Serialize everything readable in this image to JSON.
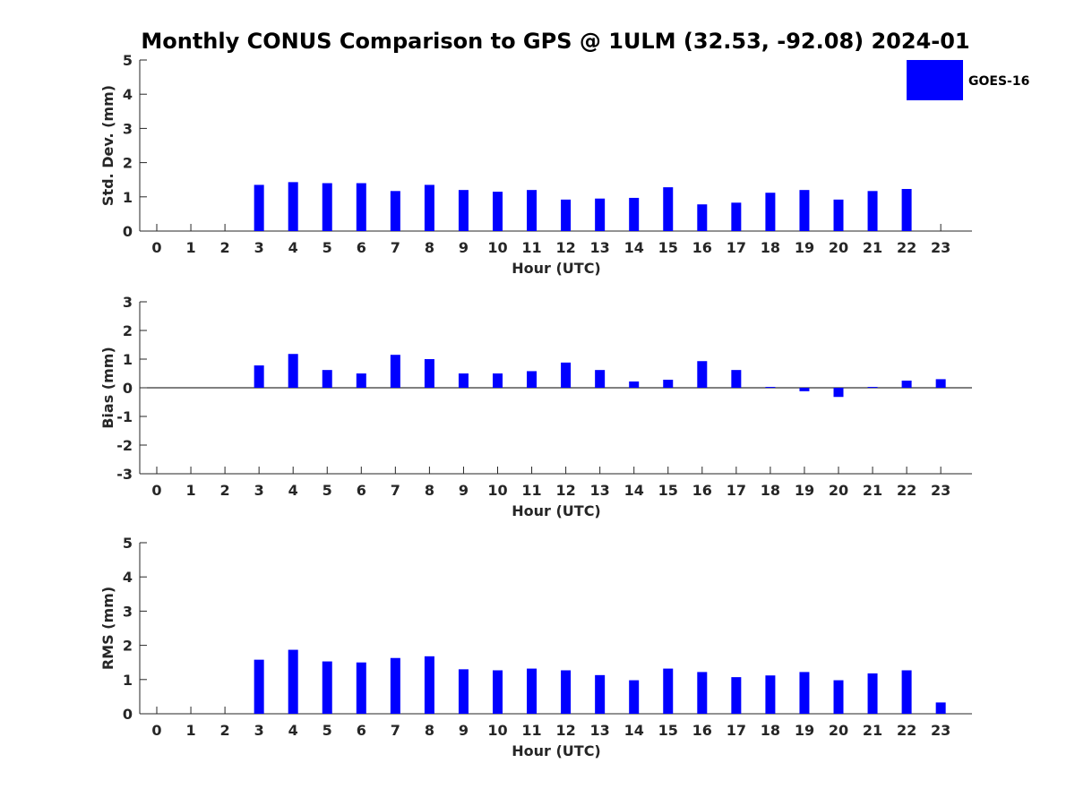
{
  "title": "Monthly CONUS Comparison to GPS @ 1ULM (32.53, -92.08) 2024-01",
  "legend": {
    "label": "GOES-16",
    "color": "#0000FF",
    "placement": "top-right"
  },
  "chart_data": [
    {
      "type": "bar",
      "ylabel": "Std. Dev. (mm)",
      "xlabel": "Hour (UTC)",
      "ylim": [
        0,
        5
      ],
      "yticks": [
        "0",
        "1",
        "2",
        "3",
        "4",
        "5"
      ],
      "categories": [
        "0",
        "1",
        "2",
        "3",
        "4",
        "5",
        "6",
        "7",
        "8",
        "9",
        "10",
        "11",
        "12",
        "13",
        "14",
        "15",
        "16",
        "17",
        "18",
        "19",
        "20",
        "21",
        "22",
        "23"
      ],
      "series": [
        {
          "name": "GOES-16",
          "values": [
            null,
            null,
            null,
            1.35,
            1.43,
            1.4,
            1.4,
            1.17,
            1.35,
            1.2,
            1.15,
            1.2,
            0.92,
            0.95,
            0.97,
            1.28,
            0.78,
            0.83,
            1.12,
            1.2,
            0.92,
            1.17,
            1.23,
            null
          ]
        }
      ]
    },
    {
      "type": "bar",
      "ylabel": "Bias (mm)",
      "xlabel": "Hour (UTC)",
      "ylim": [
        -3,
        3
      ],
      "yticks": [
        "-3",
        "-2",
        "-1",
        "0",
        "1",
        "2",
        "3"
      ],
      "categories": [
        "0",
        "1",
        "2",
        "3",
        "4",
        "5",
        "6",
        "7",
        "8",
        "9",
        "10",
        "11",
        "12",
        "13",
        "14",
        "15",
        "16",
        "17",
        "18",
        "19",
        "20",
        "21",
        "22",
        "23"
      ],
      "series": [
        {
          "name": "GOES-16",
          "values": [
            null,
            null,
            null,
            0.78,
            1.18,
            0.62,
            0.5,
            1.15,
            1.0,
            0.5,
            0.5,
            0.58,
            0.88,
            0.62,
            0.22,
            0.28,
            0.93,
            0.62,
            0.03,
            -0.12,
            -0.32,
            0.03,
            0.25,
            0.3
          ]
        }
      ]
    },
    {
      "type": "bar",
      "ylabel": "RMS (mm)",
      "xlabel": "Hour (UTC)",
      "ylim": [
        0,
        5
      ],
      "yticks": [
        "0",
        "1",
        "2",
        "3",
        "4",
        "5"
      ],
      "categories": [
        "0",
        "1",
        "2",
        "3",
        "4",
        "5",
        "6",
        "7",
        "8",
        "9",
        "10",
        "11",
        "12",
        "13",
        "14",
        "15",
        "16",
        "17",
        "18",
        "19",
        "20",
        "21",
        "22",
        "23"
      ],
      "series": [
        {
          "name": "GOES-16",
          "values": [
            null,
            null,
            null,
            1.58,
            1.87,
            1.53,
            1.5,
            1.63,
            1.68,
            1.3,
            1.27,
            1.32,
            1.27,
            1.13,
            0.98,
            1.32,
            1.22,
            1.07,
            1.12,
            1.22,
            0.98,
            1.18,
            1.27,
            0.33
          ]
        }
      ]
    }
  ]
}
